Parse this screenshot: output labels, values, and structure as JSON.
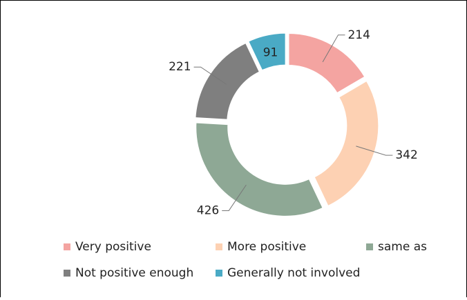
{
  "chart_data": {
    "type": "donut",
    "categories": [
      "Very positive",
      "More positive",
      "same as",
      "Not positive enough",
      "Generally not involved"
    ],
    "values": [
      214,
      342,
      426,
      221,
      91
    ],
    "colors": [
      "#f4a4a1",
      "#fdd1b3",
      "#8ea895",
      "#7f7f7f",
      "#4aaac5"
    ],
    "legend": "bottom"
  }
}
